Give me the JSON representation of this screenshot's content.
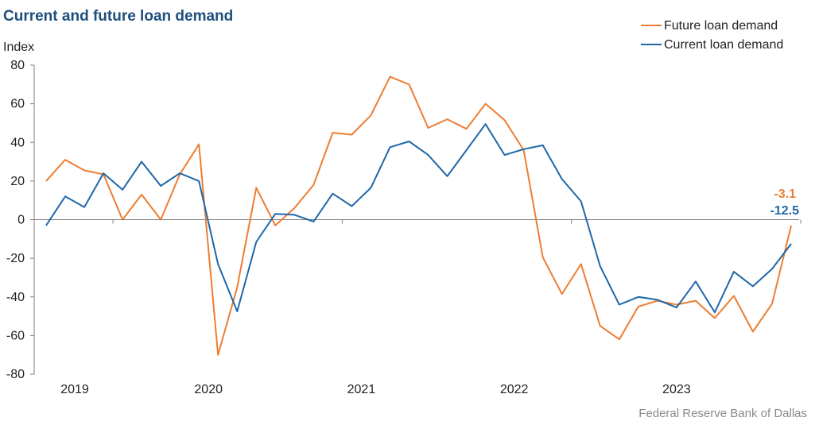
{
  "chart_data": {
    "type": "line",
    "title": "Current and future loan demand",
    "ylabel": "Index",
    "ylim": [
      -80,
      80
    ],
    "yticks": [
      80,
      60,
      40,
      20,
      0,
      -20,
      -40,
      -60,
      -80
    ],
    "year_labels": [
      "2019",
      "2020",
      "2021",
      "2022",
      "2023"
    ],
    "source": "Federal Reserve Bank of Dallas",
    "colors": {
      "future": "#ed7d31",
      "current": "#1f67a8"
    },
    "series": [
      {
        "name": "Future loan demand",
        "color": "#ed7d31",
        "values": [
          20,
          31,
          25.5,
          23.5,
          0,
          13,
          0,
          23.5,
          39,
          -70,
          -35,
          16.5,
          -3,
          6,
          18,
          45,
          44,
          54,
          74,
          70,
          47.5,
          52,
          47,
          60,
          51.5,
          36,
          -19.5,
          -38.5,
          -23,
          -55,
          -62,
          -45,
          -42,
          -44,
          -42,
          -51,
          -39.5,
          -58,
          -43.5,
          -3.1
        ],
        "end_label": "-3.1"
      },
      {
        "name": "Current loan demand",
        "color": "#1f67a8",
        "values": [
          -3,
          12,
          6.5,
          24,
          15.5,
          30,
          17.5,
          24,
          20,
          -23,
          -47.5,
          -11.5,
          3,
          2.5,
          -1,
          13.5,
          7,
          16.5,
          37.5,
          40.5,
          33.5,
          22.5,
          36,
          49.5,
          33.5,
          36.5,
          38.5,
          21,
          9.5,
          -24,
          -44,
          -40,
          -41.5,
          -45.5,
          -32,
          -48,
          -27,
          -34.5,
          -25.5,
          -12.5
        ],
        "end_label": "-12.5"
      }
    ]
  }
}
